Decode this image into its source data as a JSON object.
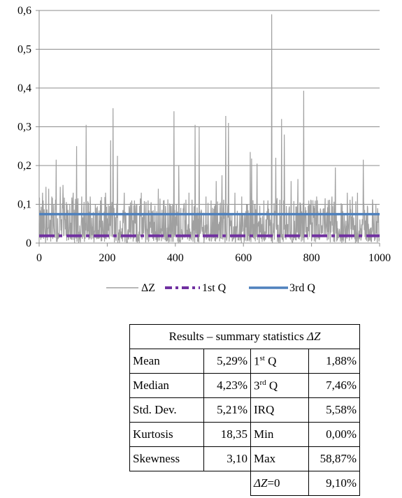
{
  "chart_data": {
    "type": "line",
    "x_ticks": [
      "0",
      "200",
      "400",
      "600",
      "800",
      "1000"
    ],
    "y_ticks": [
      "0",
      "0,1",
      "0,2",
      "0,3",
      "0,4",
      "0,5",
      "0,6"
    ],
    "xlim": [
      0,
      1000
    ],
    "ylim": [
      0,
      0.6
    ],
    "grid": "horizontal",
    "legend_position": "bottom",
    "n_points": 1000,
    "series": [
      {
        "name": "ΔZ",
        "color": "#a0a0a0",
        "style": "solid-thin",
        "peaks": [
          [
            10,
            0.13
          ],
          [
            20,
            0.145
          ],
          [
            28,
            0.14
          ],
          [
            37,
            0.12
          ],
          [
            50,
            0.215
          ],
          [
            62,
            0.145
          ],
          [
            70,
            0.15
          ],
          [
            90,
            0.1
          ],
          [
            100,
            0.13
          ],
          [
            110,
            0.25
          ],
          [
            125,
            0.12
          ],
          [
            138,
            0.305
          ],
          [
            150,
            0.12
          ],
          [
            165,
            0.1
          ],
          [
            180,
            0.11
          ],
          [
            195,
            0.13
          ],
          [
            210,
            0.265
          ],
          [
            217,
            0.348
          ],
          [
            230,
            0.225
          ],
          [
            250,
            0.13
          ],
          [
            265,
            0.09
          ],
          [
            280,
            0.11
          ],
          [
            300,
            0.13
          ],
          [
            320,
            0.11
          ],
          [
            335,
            0.085
          ],
          [
            350,
            0.14
          ],
          [
            365,
            0.11
          ],
          [
            385,
            0.1
          ],
          [
            396,
            0.34
          ],
          [
            410,
            0.2
          ],
          [
            425,
            0.1
          ],
          [
            440,
            0.13
          ],
          [
            458,
            0.305
          ],
          [
            470,
            0.3
          ],
          [
            490,
            0.12
          ],
          [
            505,
            0.11
          ],
          [
            520,
            0.16
          ],
          [
            537,
            0.175
          ],
          [
            548,
            0.328
          ],
          [
            556,
            0.31
          ],
          [
            575,
            0.13
          ],
          [
            595,
            0.12
          ],
          [
            612,
            0.1
          ],
          [
            620,
            0.235
          ],
          [
            624,
            0.218
          ],
          [
            640,
            0.205
          ],
          [
            660,
            0.11
          ],
          [
            672,
            0.11
          ],
          [
            683,
            0.59
          ],
          [
            695,
            0.22
          ],
          [
            712,
            0.32
          ],
          [
            720,
            0.28
          ],
          [
            740,
            0.16
          ],
          [
            760,
            0.165
          ],
          [
            777,
            0.393
          ],
          [
            795,
            0.1
          ],
          [
            815,
            0.12
          ],
          [
            835,
            0.085
          ],
          [
            860,
            0.12
          ],
          [
            870,
            0.195
          ],
          [
            890,
            0.1
          ],
          [
            905,
            0.13
          ],
          [
            920,
            0.12
          ],
          [
            935,
            0.13
          ],
          [
            952,
            0.215
          ],
          [
            965,
            0.09
          ],
          [
            980,
            0.1
          ],
          [
            995,
            0.075
          ]
        ]
      },
      {
        "name": "1st Q",
        "color": "#7030a0",
        "style": "dash-dot",
        "value": 0.0188
      },
      {
        "name": "3rd Q",
        "color": "#4f81bd",
        "style": "solid-thick",
        "value": 0.0746
      }
    ]
  },
  "stats_table": {
    "title_prefix": "Results – summary statistics ",
    "title_symbol": "ΔZ",
    "rows": [
      {
        "label": "Mean",
        "value": "5,29%",
        "label2_base": "1",
        "label2_sup": "st",
        "label2_rest": " Q",
        "value2": "1,88%"
      },
      {
        "label": "Median",
        "value": "4,23%",
        "label2_base": "3",
        "label2_sup": "rd",
        "label2_rest": " Q",
        "value2": "7,46%"
      },
      {
        "label": "Std. Dev.",
        "value": "5,21%",
        "label2_base": "IRQ",
        "label2_sup": "",
        "label2_rest": "",
        "value2": "5,58%"
      },
      {
        "label": "Kurtosis",
        "value": "18,35",
        "label2_base": "Min",
        "label2_sup": "",
        "label2_rest": "",
        "value2": "0,00%"
      },
      {
        "label": "Skewness",
        "value": "3,10",
        "label2_base": "Max",
        "label2_sup": "",
        "label2_rest": "",
        "value2": "58,87%"
      }
    ],
    "last_row": {
      "symbol": "ΔZ",
      "rest": "=0",
      "value": "9,10%"
    }
  }
}
